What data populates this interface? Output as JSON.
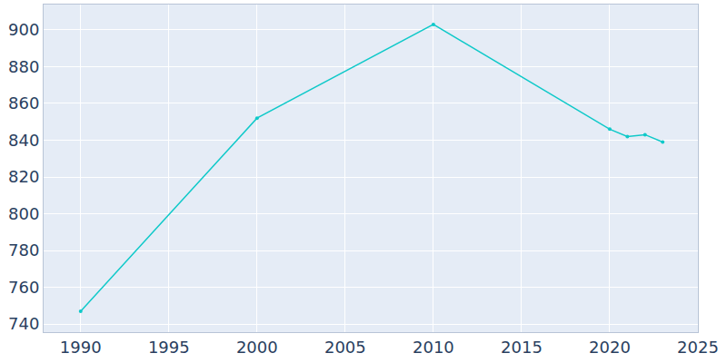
{
  "chart_data": {
    "type": "line",
    "x": [
      1990,
      2000,
      2010,
      2020,
      2021,
      2022,
      2023
    ],
    "values": [
      747,
      852,
      903,
      846,
      842,
      843,
      839
    ],
    "color": "#0fc9c9",
    "marker": "circle",
    "xlim": [
      1987.9,
      2025
    ],
    "xticks": [
      1990,
      1995,
      2000,
      2005,
      2010,
      2015,
      2020,
      2025
    ],
    "ylim": [
      735.6,
      913.8
    ],
    "yticks": [
      740,
      760,
      780,
      800,
      820,
      840,
      860,
      880,
      900
    ],
    "grid": true
  }
}
